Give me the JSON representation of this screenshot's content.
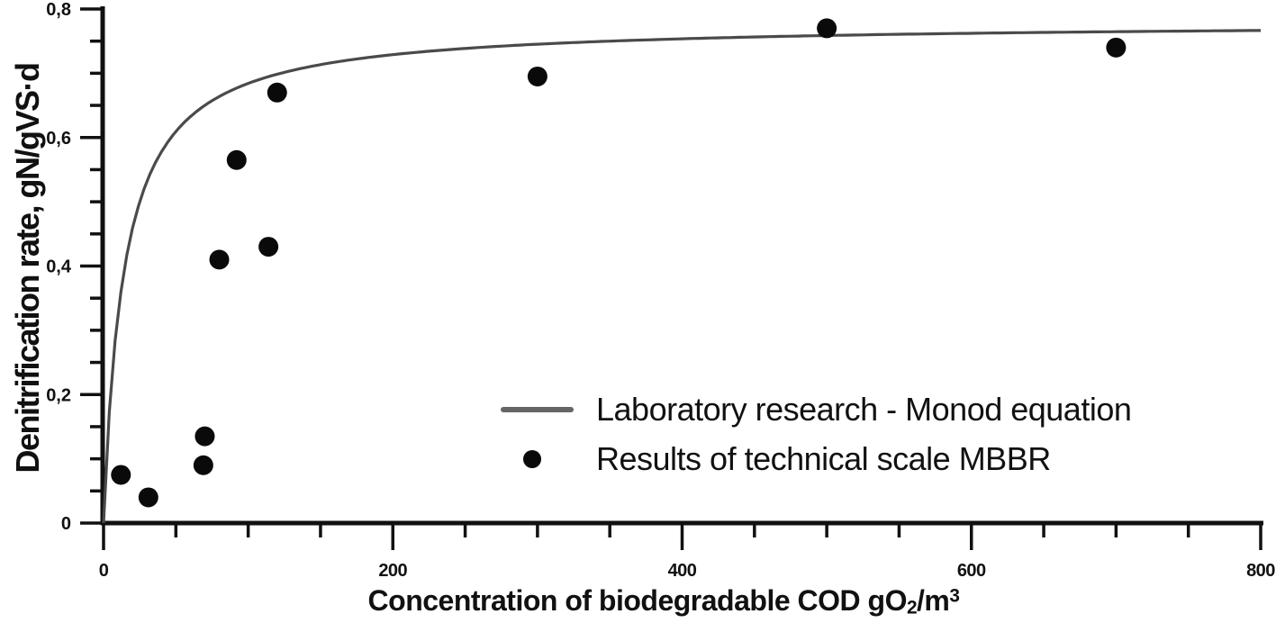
{
  "figure": {
    "background": "#ffffff",
    "ink_color": "#111111",
    "curve_color": "#4a4a4a",
    "legend_line_color": "#666666",
    "point_color": "#0a0a0a"
  },
  "chart_data": {
    "type": "scatter",
    "title": "",
    "ylabel": "Denitrification rate, gN/gVS·d",
    "xlabel": {
      "base": "Concentration of biodegradable COD gO",
      "sub": "2",
      "mid": "/m",
      "sup": "3",
      "full_text": "Concentration of biodegradable COD gO2/m3"
    },
    "xlim": [
      0,
      800
    ],
    "ylim": [
      0,
      0.8
    ],
    "grid": false,
    "legend_position": "inside lower right",
    "x_major_ticks": {
      "values": [
        0,
        200,
        400,
        600,
        800
      ],
      "labels": [
        "0",
        "200",
        "400",
        "600",
        "800"
      ]
    },
    "x_minor_step": 50,
    "y_major_ticks": {
      "values": [
        0,
        0.2,
        0.4,
        0.6,
        0.8
      ],
      "labels": [
        "0",
        "0,2",
        "0,4",
        "0,6",
        "0,8"
      ]
    },
    "y_minor_step": 0.05,
    "series": [
      {
        "name": "Laboratory research - Monod equation",
        "type": "line",
        "model": "monod",
        "params": {
          "rmax": 0.78,
          "ks": 14
        },
        "x_range": [
          0,
          800
        ]
      },
      {
        "name": "Results of technical scale MBBR",
        "type": "scatter",
        "points": [
          [
            12,
            0.075
          ],
          [
            31,
            0.04
          ],
          [
            69,
            0.09
          ],
          [
            70,
            0.135
          ],
          [
            80,
            0.41
          ],
          [
            92,
            0.565
          ],
          [
            114,
            0.43
          ],
          [
            120,
            0.67
          ],
          [
            300,
            0.695
          ],
          [
            500,
            0.77
          ],
          [
            700,
            0.74
          ]
        ]
      }
    ]
  }
}
